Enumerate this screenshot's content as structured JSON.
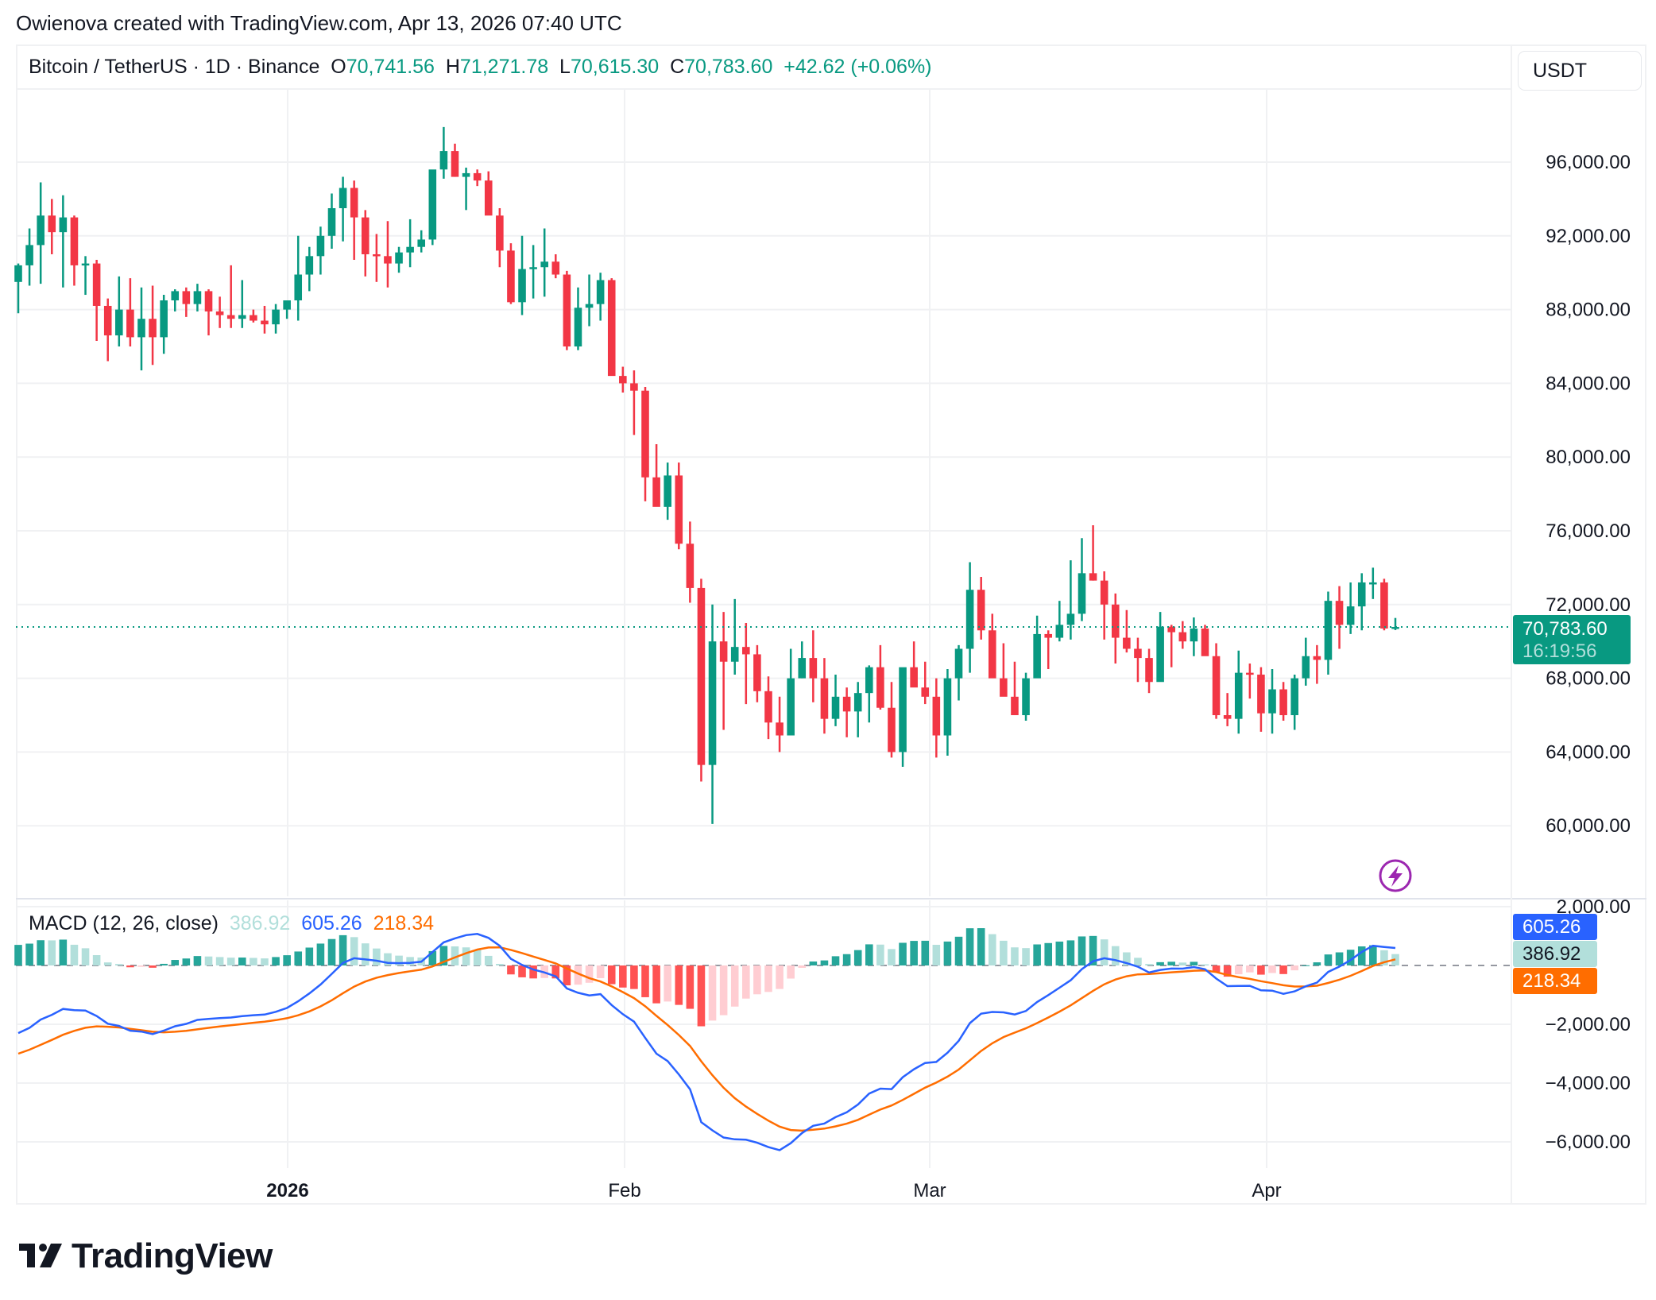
{
  "header": {
    "credit": "Owienova created with TradingView.com, Apr 13, 2026 07:40 UTC"
  },
  "legend": {
    "symbol": "Bitcoin / TetherUS · 1D · Binance",
    "o_label": "O",
    "o_value": "70,741.56",
    "h_label": "H",
    "h_value": "71,271.78",
    "l_label": "L",
    "l_value": "70,615.30",
    "c_label": "C",
    "c_value": "70,783.60",
    "change": "+42.62 (+0.06%)"
  },
  "currency_button": "USDT",
  "price_tag": {
    "price": "70,783.60",
    "countdown": "16:19:56",
    "color": "#089981"
  },
  "macd_legend": {
    "name": "MACD (12, 26, close)",
    "histogram": "386.92",
    "macd": "605.26",
    "signal": "218.34"
  },
  "macd_tags": {
    "macd": "605.26",
    "histogram": "386.92",
    "signal": "218.34"
  },
  "x_axis": [
    "2026",
    "Feb",
    "Mar",
    "Apr"
  ],
  "price_axis": [
    "96,000.00",
    "92,000.00",
    "88,000.00",
    "84,000.00",
    "80,000.00",
    "76,000.00",
    "72,000.00",
    "68,000.00",
    "64,000.00",
    "60,000.00"
  ],
  "macd_axis": [
    "2,000.00",
    "−2,000.00",
    "−4,000.00",
    "−6,000.00"
  ],
  "logo": {
    "text": "TradingView"
  },
  "colors": {
    "up": "#089981",
    "down": "#f23645",
    "macd": "#2962ff",
    "signal": "#ff6d00",
    "hist_up_strong": "#26a69a",
    "hist_up_weak": "#b2dfdb",
    "hist_down_strong": "#ff5252",
    "hist_down_weak": "#ffcdd2",
    "event_icon": "#9c27b0"
  },
  "chart_data": [
    {
      "type": "candlestick",
      "title": "Bitcoin / TetherUS · 1D · Binance",
      "xlabel": "",
      "ylabel": "USDT",
      "x_ticks": [
        "2026",
        "Feb",
        "Mar",
        "Apr"
      ],
      "ylim": [
        56500,
        99500
      ],
      "y_ticks": [
        60000,
        64000,
        68000,
        72000,
        76000,
        80000,
        84000,
        88000,
        92000,
        96000
      ],
      "grid": true,
      "last_price": 70783.6,
      "ohlc": [
        [
          89500,
          90500,
          87800,
          90400
        ],
        [
          90400,
          92400,
          89300,
          91500
        ],
        [
          91500,
          94900,
          89400,
          93100
        ],
        [
          93100,
          94000,
          91000,
          92200
        ],
        [
          92200,
          94200,
          89200,
          93000
        ],
        [
          93000,
          93100,
          89300,
          90400
        ],
        [
          90400,
          90900,
          88800,
          90500
        ],
        [
          90500,
          90700,
          86300,
          88200
        ],
        [
          88200,
          88600,
          85200,
          86600
        ],
        [
          86600,
          89800,
          86000,
          88000
        ],
        [
          88000,
          89700,
          86000,
          86500
        ],
        [
          86500,
          89200,
          84700,
          87500
        ],
        [
          87500,
          89300,
          85000,
          86500
        ],
        [
          86500,
          88800,
          85600,
          88500
        ],
        [
          88500,
          89100,
          87900,
          89000
        ],
        [
          89000,
          89200,
          87600,
          88300
        ],
        [
          88300,
          89400,
          87900,
          89000
        ],
        [
          89000,
          89100,
          86600,
          87900
        ],
        [
          87900,
          88700,
          87000,
          87700
        ],
        [
          87700,
          90400,
          87000,
          87500
        ],
        [
          87500,
          89600,
          87000,
          87700
        ],
        [
          87700,
          88000,
          87300,
          87400
        ],
        [
          87400,
          88200,
          86700,
          87200
        ],
        [
          87200,
          88300,
          86700,
          88000
        ],
        [
          88000,
          88300,
          87500,
          88500
        ],
        [
          88500,
          92000,
          87400,
          89900
        ],
        [
          89900,
          91400,
          89000,
          90900
        ],
        [
          90900,
          92500,
          89900,
          92000
        ],
        [
          92000,
          94300,
          91300,
          93500
        ],
        [
          93500,
          95200,
          91700,
          94600
        ],
        [
          94600,
          95000,
          90700,
          93000
        ],
        [
          93000,
          93400,
          89800,
          91000
        ],
        [
          91000,
          92100,
          89500,
          90900
        ],
        [
          90900,
          92800,
          89200,
          90500
        ],
        [
          90500,
          91400,
          90000,
          91100
        ],
        [
          91100,
          92900,
          90300,
          91400
        ],
        [
          91400,
          92300,
          91100,
          91800
        ],
        [
          91800,
          95100,
          91500,
          95600
        ],
        [
          95600,
          97900,
          95100,
          96600
        ],
        [
          96600,
          97000,
          95200,
          95200
        ],
        [
          95200,
          95700,
          93400,
          95400
        ],
        [
          95400,
          95600,
          94700,
          95000
        ],
        [
          95000,
          95500,
          93600,
          93100
        ],
        [
          93100,
          93500,
          90300,
          91200
        ],
        [
          91200,
          91600,
          88300,
          88400
        ],
        [
          88400,
          92000,
          87700,
          90200
        ],
        [
          90200,
          91500,
          88600,
          90300
        ],
        [
          90300,
          92400,
          88700,
          90600
        ],
        [
          90600,
          91000,
          89700,
          89900
        ],
        [
          89900,
          90100,
          85800,
          86000
        ],
        [
          86000,
          89200,
          85800,
          88100
        ],
        [
          88100,
          89900,
          87100,
          88300
        ],
        [
          88300,
          90000,
          87400,
          89600
        ],
        [
          89600,
          89700,
          84600,
          84400
        ],
        [
          84400,
          84900,
          83500,
          84000
        ],
        [
          84000,
          84700,
          81200,
          83600
        ],
        [
          83600,
          83800,
          77600,
          78900
        ],
        [
          78900,
          80700,
          77500,
          77300
        ],
        [
          77300,
          79700,
          76600,
          79000
        ],
        [
          79000,
          79700,
          75000,
          75300
        ],
        [
          75300,
          76500,
          72100,
          72900
        ],
        [
          72900,
          73400,
          62400,
          63300
        ],
        [
          63300,
          72000,
          60100,
          70000
        ],
        [
          70000,
          71600,
          65200,
          68900
        ],
        [
          68900,
          72300,
          68200,
          69700
        ],
        [
          69700,
          71000,
          66600,
          69300
        ],
        [
          69300,
          69800,
          66700,
          67300
        ],
        [
          67300,
          68100,
          64700,
          65600
        ],
        [
          65600,
          67000,
          64000,
          64900
        ],
        [
          64900,
          69600,
          65700,
          68000
        ],
        [
          68000,
          70000,
          68000,
          69100
        ],
        [
          69100,
          70600,
          66700,
          68000
        ],
        [
          68000,
          69100,
          65000,
          65800
        ],
        [
          65800,
          68200,
          65400,
          67000
        ],
        [
          67000,
          67500,
          64800,
          66200
        ],
        [
          66200,
          67800,
          64800,
          67200
        ],
        [
          67200,
          68700,
          65600,
          68600
        ],
        [
          68600,
          69800,
          66300,
          66400
        ],
        [
          66400,
          67800,
          63700,
          64000
        ],
        [
          64000,
          68500,
          63200,
          68600
        ],
        [
          68600,
          70000,
          67600,
          67500
        ],
        [
          67500,
          68900,
          66600,
          67000
        ],
        [
          67000,
          68000,
          63700,
          64900
        ],
        [
          64900,
          68500,
          63800,
          68000
        ],
        [
          68000,
          69800,
          66800,
          69600
        ],
        [
          69600,
          74300,
          68300,
          72800
        ],
        [
          72800,
          73500,
          70100,
          70600
        ],
        [
          70600,
          71500,
          68600,
          68000
        ],
        [
          68000,
          69900,
          67200,
          67000
        ],
        [
          67000,
          68900,
          66300,
          66000
        ],
        [
          66000,
          68300,
          65700,
          68000
        ],
        [
          68000,
          71400,
          68600,
          70400
        ],
        [
          70400,
          70600,
          68500,
          70200
        ],
        [
          70200,
          72200,
          70000,
          70900
        ],
        [
          70900,
          74400,
          70100,
          71500
        ],
        [
          71500,
          75600,
          71100,
          73700
        ],
        [
          73700,
          76300,
          73300,
          73300
        ],
        [
          73300,
          73800,
          70100,
          72000
        ],
        [
          72000,
          72600,
          68800,
          70200
        ],
        [
          70200,
          71700,
          69400,
          69600
        ],
        [
          69600,
          70200,
          67800,
          69100
        ],
        [
          69100,
          69600,
          67200,
          67800
        ],
        [
          67800,
          71600,
          67900,
          70800
        ],
        [
          70800,
          70900,
          68600,
          70500
        ],
        [
          70500,
          71100,
          69600,
          70000
        ],
        [
          70000,
          71300,
          69200,
          70700
        ],
        [
          70700,
          70900,
          69800,
          69200
        ],
        [
          69200,
          69900,
          65800,
          66000
        ],
        [
          66000,
          67200,
          65400,
          65800
        ],
        [
          65800,
          69500,
          65000,
          68300
        ],
        [
          68300,
          68800,
          66900,
          68200
        ],
        [
          68200,
          68600,
          65100,
          66100
        ],
        [
          66100,
          68500,
          65000,
          67400
        ],
        [
          67400,
          67800,
          65700,
          66000
        ],
        [
          66000,
          68200,
          65200,
          68000
        ],
        [
          68000,
          70200,
          67600,
          69200
        ],
        [
          69200,
          69800,
          67700,
          69000
        ],
        [
          69000,
          72700,
          68200,
          72200
        ],
        [
          72200,
          73000,
          69600,
          70900
        ],
        [
          70900,
          73200,
          70400,
          71900
        ],
        [
          71900,
          73700,
          70600,
          73200
        ],
        [
          73200,
          74000,
          72300,
          73200
        ],
        [
          73200,
          73400,
          70600,
          70700
        ],
        [
          70741,
          71272,
          70615,
          70784
        ]
      ]
    },
    {
      "type": "line",
      "title": "MACD (12, 26, close)",
      "ylim": [
        -7000,
        2800
      ],
      "y_ticks": [
        2000,
        0,
        -2000,
        -4000,
        -6000
      ],
      "series": [
        {
          "name": "MACD",
          "color": "#2962ff",
          "last": 605.26
        },
        {
          "name": "Signal",
          "color": "#ff6d00",
          "last": 218.34
        },
        {
          "name": "Histogram",
          "type": "bar",
          "last": 386.92
        }
      ]
    }
  ]
}
